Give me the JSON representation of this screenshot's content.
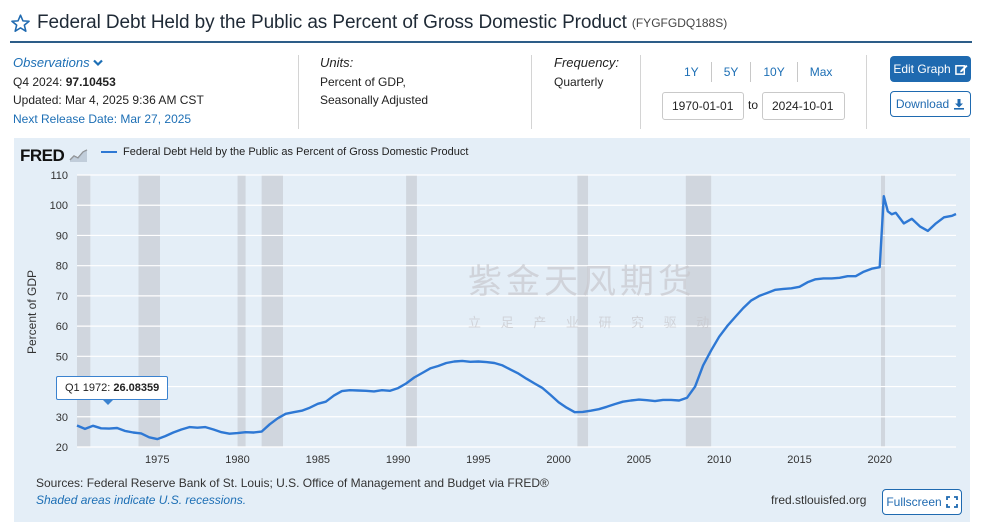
{
  "header": {
    "title": "Federal Debt Held by the Public as Percent of Gross Domestic Product",
    "series_code": "(FYGFGDQ188S)"
  },
  "observations": {
    "heading": "Observations",
    "latest_period": "Q4 2024:",
    "latest_value": "97.10453",
    "updated": "Updated: Mar 4, 2025 9:36 AM CST",
    "next_release": "Next Release Date: Mar 27, 2025"
  },
  "units": {
    "heading": "Units:",
    "line1": "Percent of GDP,",
    "line2": "Seasonally Adjusted"
  },
  "frequency": {
    "heading": "Frequency:",
    "value": "Quarterly"
  },
  "range": {
    "buttons": [
      "1Y",
      "5Y",
      "10Y",
      "Max"
    ],
    "start_date": "1970-01-01",
    "to_word": "to",
    "end_date": "2024-10-01"
  },
  "actions": {
    "edit_label": "Edit Graph",
    "download_label": "Download",
    "fullscreen_label": "Fullscreen"
  },
  "graph": {
    "logo_text": "FRED",
    "legend_label": "Federal Debt Held by the Public as Percent of Gross Domestic Product",
    "tooltip_label": "Q1 1972:",
    "tooltip_value": "26.08359",
    "sources": "Sources: Federal Reserve Bank of St. Louis; U.S. Office of Management and Budget via FRED®",
    "shaded_note": "Shaded areas indicate U.S. recessions.",
    "site": "fred.stlouisfed.org"
  },
  "watermark": {
    "company": "紫金天风期货",
    "slogan": "立 足 产 业 研 究 驱 动"
  },
  "colors": {
    "accent": "#1f6ab0",
    "line": "#2e78d4",
    "panel": "#e4eef7",
    "recession": "#d0d6de"
  },
  "chart_data": {
    "type": "line",
    "ylabel": "Percent of GDP",
    "ylim": [
      20,
      110
    ],
    "yticks": [
      20,
      30,
      40,
      50,
      60,
      70,
      80,
      90,
      100,
      110
    ],
    "xlim": [
      1970.0,
      2024.75
    ],
    "xticks": [
      1975,
      1980,
      1985,
      1990,
      1995,
      2000,
      2005,
      2010,
      2015,
      2020
    ],
    "grid": true,
    "legend": "top-left",
    "recessions": [
      [
        1970.0,
        1970.83
      ],
      [
        1973.83,
        1975.17
      ],
      [
        1980.0,
        1980.5
      ],
      [
        1981.5,
        1982.83
      ],
      [
        1990.5,
        1991.17
      ],
      [
        2001.17,
        2001.83
      ],
      [
        2007.92,
        2009.5
      ],
      [
        2020.08,
        2020.33
      ]
    ],
    "series": [
      {
        "name": "Federal Debt Held by the Public as Percent of Gross Domestic Product",
        "x": [
          1970.0,
          1970.5,
          1971.0,
          1971.5,
          1972.0,
          1972.5,
          1973.0,
          1973.5,
          1974.0,
          1974.5,
          1975.0,
          1975.5,
          1976.0,
          1976.5,
          1977.0,
          1977.5,
          1978.0,
          1978.5,
          1979.0,
          1979.5,
          1980.0,
          1980.5,
          1981.0,
          1981.5,
          1982.0,
          1982.5,
          1983.0,
          1983.5,
          1984.0,
          1984.5,
          1985.0,
          1985.5,
          1986.0,
          1986.5,
          1987.0,
          1987.5,
          1988.0,
          1988.5,
          1989.0,
          1989.5,
          1990.0,
          1990.5,
          1991.0,
          1991.5,
          1992.0,
          1992.5,
          1993.0,
          1993.5,
          1994.0,
          1994.5,
          1995.0,
          1995.5,
          1996.0,
          1996.5,
          1997.0,
          1997.5,
          1998.0,
          1998.5,
          1999.0,
          1999.5,
          2000.0,
          2000.5,
          2001.0,
          2001.5,
          2002.0,
          2002.5,
          2003.0,
          2003.5,
          2004.0,
          2004.5,
          2005.0,
          2005.5,
          2006.0,
          2006.5,
          2007.0,
          2007.5,
          2008.0,
          2008.5,
          2009.0,
          2009.5,
          2010.0,
          2010.5,
          2011.0,
          2011.5,
          2012.0,
          2012.5,
          2013.0,
          2013.5,
          2014.0,
          2014.5,
          2015.0,
          2015.5,
          2016.0,
          2016.5,
          2017.0,
          2017.5,
          2018.0,
          2018.5,
          2019.0,
          2019.5,
          2020.0,
          2020.25,
          2020.5,
          2020.75,
          2021.0,
          2021.5,
          2022.0,
          2022.5,
          2023.0,
          2023.5,
          2024.0,
          2024.5,
          2024.75
        ],
        "values": [
          27.1,
          26.0,
          27.0,
          26.2,
          26.1,
          26.3,
          25.3,
          24.8,
          24.5,
          23.2,
          22.6,
          23.6,
          24.8,
          25.8,
          26.6,
          26.4,
          26.6,
          25.8,
          24.9,
          24.4,
          24.6,
          24.9,
          24.8,
          25.1,
          27.5,
          29.5,
          31.0,
          31.5,
          32.0,
          33.0,
          34.3,
          35.0,
          37.0,
          38.5,
          38.8,
          38.7,
          38.6,
          38.4,
          38.8,
          38.6,
          39.5,
          41.0,
          43.0,
          44.5,
          46.0,
          46.8,
          47.8,
          48.3,
          48.5,
          48.2,
          48.3,
          48.1,
          47.8,
          47.0,
          45.6,
          44.3,
          42.6,
          41.0,
          39.5,
          37.2,
          34.8,
          33.0,
          31.5,
          31.6,
          32.0,
          32.5,
          33.3,
          34.2,
          35.0,
          35.4,
          35.7,
          35.5,
          35.2,
          35.6,
          35.6,
          35.4,
          36.3,
          40.0,
          47.0,
          52.0,
          56.5,
          60.0,
          63.0,
          66.0,
          68.5,
          70.0,
          71.0,
          72.0,
          72.3,
          72.5,
          73.0,
          74.5,
          75.5,
          75.8,
          75.8,
          76.0,
          76.5,
          76.5,
          78.0,
          79.0,
          79.5,
          103.0,
          98.0,
          97.0,
          97.5,
          94.0,
          95.5,
          93.0,
          91.5,
          94.0,
          96.0,
          96.5,
          97.1
        ]
      }
    ]
  }
}
